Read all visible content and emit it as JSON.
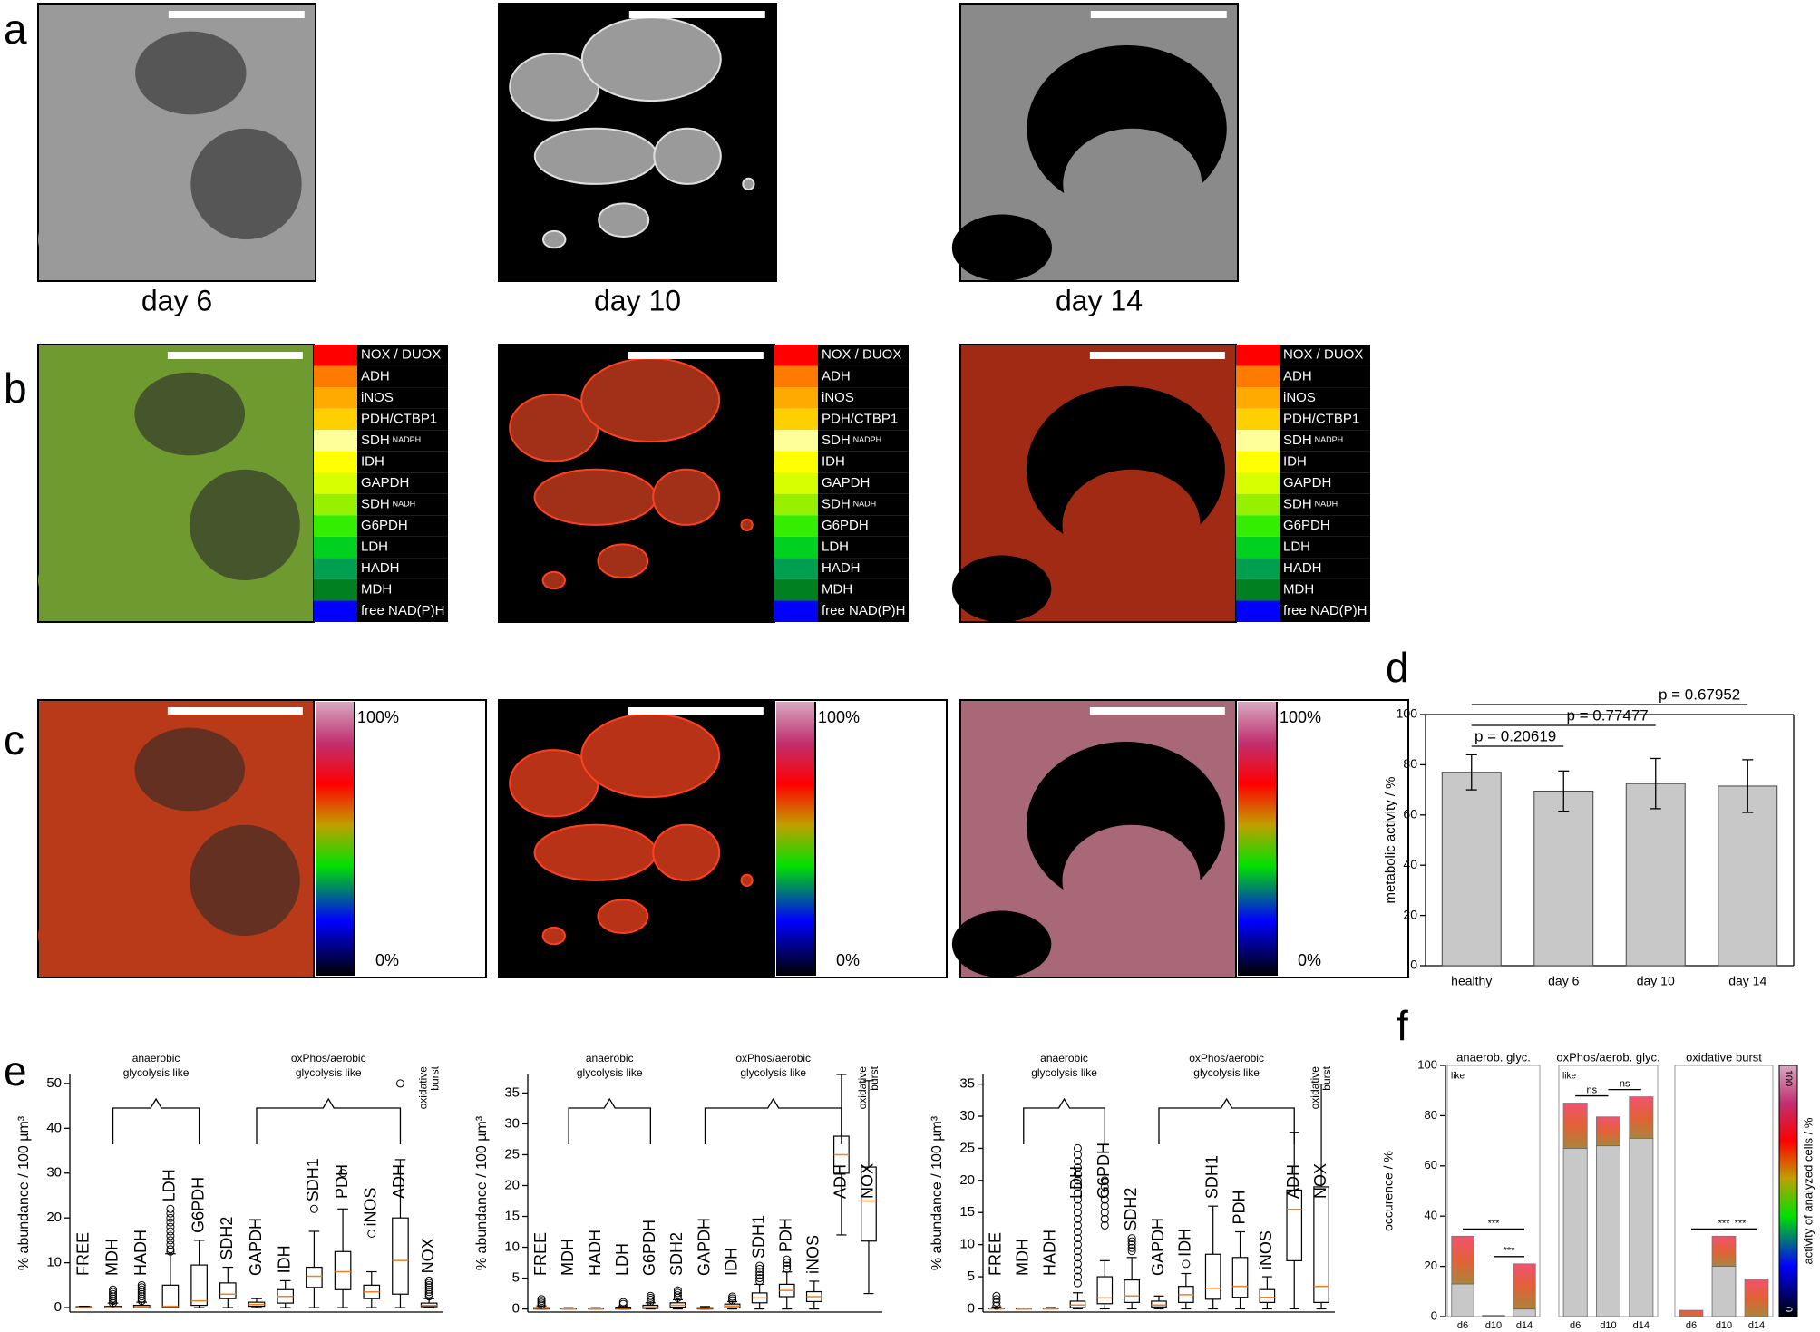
{
  "panel_labels": [
    "a",
    "b",
    "c",
    "d",
    "e",
    "f"
  ],
  "row_a": {
    "captions": [
      "day 6",
      "day 10",
      "day 14"
    ]
  },
  "row_b": {
    "legend": [
      {
        "label": "NOX / DUOX",
        "color": "#ff0000"
      },
      {
        "label": "ADH",
        "color": "#ff7a00"
      },
      {
        "label": "iNOS",
        "color": "#ffaa00"
      },
      {
        "label": "PDH/CTBP1",
        "color": "#ffd000"
      },
      {
        "label": "SDH",
        "sub": "NADPH",
        "color": "#ffff9a"
      },
      {
        "label": "IDH",
        "color": "#ffff00"
      },
      {
        "label": "GAPDH",
        "color": "#d8ff00"
      },
      {
        "label": "SDH",
        "sub": "NADH",
        "color": "#96f000"
      },
      {
        "label": "G6PDH",
        "color": "#33ee00"
      },
      {
        "label": "LDH",
        "color": "#00d020"
      },
      {
        "label": "HADH",
        "color": "#00a050"
      },
      {
        "label": "MDH",
        "color": "#008020"
      },
      {
        "label": "free NAD(P)H",
        "color": "#0000ff"
      }
    ]
  },
  "row_c": {
    "colorbar_labels": [
      "100%",
      "0%"
    ]
  },
  "chart_data": [
    {
      "type": "bar",
      "ylabel": "metabolic activity / %",
      "categories": [
        "healthy",
        "day 6",
        "day 10",
        "day 14"
      ],
      "values": [
        77,
        69.5,
        72.5,
        71.5
      ],
      "errors": [
        7,
        8,
        10,
        10.5
      ],
      "color": "#c8c8c8",
      "ylim": [
        0,
        100
      ],
      "yticks": [
        0,
        20,
        40,
        60,
        80,
        100
      ],
      "annotations": [
        {
          "text": "p = 0.20619",
          "between": [
            0,
            1
          ]
        },
        {
          "text": "p = 0.77477",
          "between": [
            0,
            2
          ]
        },
        {
          "text": "p = 0.67952",
          "between": [
            0,
            3
          ]
        }
      ]
    },
    {
      "type": "box",
      "ylabel": "% abundance / 100 µm³",
      "categories": [
        "FREE",
        "MDH",
        "HADH",
        "LDH",
        "G6PDH",
        "SDH2",
        "GAPDH",
        "IDH",
        "SDH1",
        "PDH",
        "iNOS",
        "ADH",
        "NOX"
      ],
      "boxes": [
        [
          0,
          0,
          0,
          0.2,
          0.3
        ],
        [
          0,
          0,
          0.1,
          0.3,
          1
        ],
        [
          0,
          0,
          0.2,
          0.5,
          1.2
        ],
        [
          0,
          0,
          0.3,
          5,
          12
        ],
        [
          0,
          0.5,
          1.5,
          9.5,
          15
        ],
        [
          0,
          2,
          3,
          5.5,
          9
        ],
        [
          0,
          0.3,
          0.7,
          1.2,
          2
        ],
        [
          0,
          1,
          2.5,
          4,
          6
        ],
        [
          0,
          4.5,
          7,
          9,
          17
        ],
        [
          0,
          4,
          8,
          12.5,
          22
        ],
        [
          0,
          2,
          3.5,
          5,
          8
        ],
        [
          0,
          3,
          10.5,
          20,
          33
        ],
        [
          0,
          0.2,
          0.5,
          1,
          2
        ]
      ],
      "outliers": [
        [],
        [
          1,
          1.5,
          2,
          2.5,
          3,
          3.5,
          4
        ],
        [
          1.5,
          2,
          2.5,
          3,
          3.5,
          4,
          4.5,
          5
        ],
        [
          12.5,
          13,
          14,
          15,
          16,
          17,
          18,
          19,
          20,
          21,
          22
        ],
        [],
        [],
        [],
        [],
        [
          22
        ],
        [
          30
        ],
        [
          16.5
        ],
        [
          50
        ],
        [
          2.5,
          3,
          3.5,
          4,
          4.5,
          5,
          5.5,
          6
        ]
      ],
      "group_labels": [
        [
          "anaerobic",
          "glycolysis like"
        ],
        [
          "oxPhos/aerobic",
          "glycolysis like"
        ],
        [
          "oxidative",
          "burst"
        ]
      ],
      "ylim": [
        -1,
        52
      ],
      "yticks": [
        0,
        10,
        20,
        30,
        40,
        50
      ]
    },
    {
      "type": "box",
      "ylabel": "% abundance / 100 µm³",
      "categories": [
        "FREE",
        "MDH",
        "HADH",
        "LDH",
        "G6PDH",
        "SDH2",
        "GAPDH",
        "IDH",
        "SDH1",
        "PDH",
        "iNOS",
        "ADH",
        "NOX"
      ],
      "boxes": [
        [
          0,
          0,
          0.1,
          0.2,
          0.5
        ],
        [
          0,
          0,
          0,
          0.1,
          0.2
        ],
        [
          0,
          0,
          0,
          0.1,
          0.2
        ],
        [
          0,
          0,
          0.1,
          0.3,
          0.5
        ],
        [
          0,
          0.1,
          0.3,
          0.6,
          1
        ],
        [
          0,
          0.3,
          0.6,
          1,
          1.5
        ],
        [
          0,
          0,
          0.1,
          0.2,
          0.4
        ],
        [
          0,
          0.2,
          0.5,
          0.8,
          1.2
        ],
        [
          0,
          1,
          1.8,
          2.6,
          4
        ],
        [
          0,
          2,
          3,
          4,
          6
        ],
        [
          0,
          1.2,
          2,
          2.8,
          4.5
        ],
        [
          12,
          22,
          25,
          28,
          38
        ],
        [
          2.5,
          11,
          17.5,
          23,
          37
        ]
      ],
      "outliers": [
        [
          0.7,
          1,
          1.3,
          1.6
        ],
        [],
        [],
        [
          0.8,
          1.1
        ],
        [
          1.2,
          1.5,
          1.8,
          2.1
        ],
        [
          1.8,
          2.2,
          2.6,
          3
        ],
        [],
        [
          1.4,
          1.7,
          2
        ],
        [
          4.5,
          5,
          5.5,
          6,
          6.5,
          7
        ],
        [
          6.5,
          7,
          7.5,
          8
        ],
        [],
        [],
        []
      ],
      "group_labels": [
        [
          "anaerobic",
          "glycolysis like"
        ],
        [
          "oxPhos/aerobic",
          "glycolysis like"
        ],
        [
          "oxidative",
          "burst"
        ]
      ],
      "ylim": [
        -0.5,
        38
      ],
      "yticks": [
        0,
        5,
        10,
        15,
        20,
        25,
        30,
        35
      ]
    },
    {
      "type": "box",
      "ylabel": "% abundance / 100 µm³",
      "categories": [
        "FREE",
        "MDH",
        "HADH",
        "LDH",
        "G6PDH",
        "SDH2",
        "GAPDH",
        "IDH",
        "SDH1",
        "PDH",
        "iNOS",
        "ADH",
        "NOX"
      ],
      "boxes": [
        [
          0,
          0,
          0,
          0.1,
          0.3
        ],
        [
          0,
          0,
          0,
          0.05,
          0.1
        ],
        [
          0,
          0,
          0,
          0.1,
          0.2
        ],
        [
          0,
          0.2,
          0.6,
          1.2,
          2.5
        ],
        [
          0,
          0.8,
          1.7,
          5,
          7.5
        ],
        [
          0,
          1,
          2,
          4.5,
          8
        ],
        [
          0,
          0.3,
          0.6,
          1.2,
          2
        ],
        [
          0,
          1,
          2.2,
          3.5,
          5.5
        ],
        [
          0,
          1.5,
          3.2,
          8.5,
          16
        ],
        [
          0,
          1.8,
          3.5,
          8,
          12
        ],
        [
          0,
          1,
          1.8,
          3,
          5
        ],
        [
          0,
          7.5,
          15.5,
          18.5,
          27.5
        ],
        [
          0,
          1,
          3.5,
          19,
          35
        ]
      ],
      "outliers": [
        [
          0.5,
          1,
          1.5,
          2
        ],
        [],
        [],
        [
          4,
          5,
          6,
          7,
          8,
          9,
          10,
          11,
          12,
          13,
          14,
          15,
          16,
          17,
          18,
          19,
          20,
          21,
          22,
          23,
          24,
          25
        ],
        [
          13,
          14,
          15,
          16,
          17,
          18,
          19,
          20
        ],
        [
          9,
          9.5,
          10,
          10.5,
          11
        ],
        [],
        [
          7
        ],
        [],
        [],
        [],
        [],
        []
      ],
      "group_labels": [
        [
          "anaerobic",
          "glycolysis like"
        ],
        [
          "oxPhos/aerobic",
          "glycolysis like"
        ],
        [
          "oxidative",
          "burst"
        ]
      ],
      "ylim": [
        -0.5,
        36.5
      ],
      "yticks": [
        0,
        5,
        10,
        15,
        20,
        25,
        30,
        35
      ]
    },
    {
      "type": "grouped_stack",
      "ylabel": "occurence / %",
      "ylim": [
        0,
        100
      ],
      "yticks": [
        0,
        20,
        40,
        60,
        80,
        100
      ],
      "groups": [
        {
          "title": "anaerob. glyc.",
          "note": "like",
          "categories": [
            "d6",
            "d10",
            "d14"
          ],
          "series": [
            {
              "color": "#c8c8c8",
              "values": [
                13,
                0,
                3
              ]
            },
            {
              "color": "#e05020",
              "values": [
                19,
                0.5,
                18
              ]
            }
          ],
          "significance": [
            {
              "text": "***",
              "between": [
                0,
                2
              ]
            },
            {
              "text": "***",
              "between": [
                1,
                2
              ]
            }
          ]
        },
        {
          "title": "oxPhos/aerob. glyc.",
          "note": "like",
          "categories": [
            "d6",
            "d10",
            "d14"
          ],
          "series": [
            {
              "color": "#c8c8c8",
              "values": [
                67,
                68,
                71
              ]
            },
            {
              "color": "#e05020",
              "values": [
                18,
                11.5,
                16.5
              ]
            }
          ],
          "significance": [
            {
              "text": "ns",
              "between": [
                0,
                1
              ]
            },
            {
              "text": "ns",
              "between": [
                1,
                2
              ]
            }
          ]
        },
        {
          "title": "oxidative burst",
          "categories": [
            "d6",
            "d10",
            "d14"
          ],
          "series": [
            {
              "color": "#c8c8c8",
              "values": [
                0,
                20,
                0
              ]
            },
            {
              "color": "#e05020",
              "values": [
                2.5,
                12,
                15
              ]
            }
          ],
          "significance": [
            {
              "text": "***",
              "between": [
                0,
                2
              ]
            },
            {
              "text": "***",
              "between": [
                1,
                2
              ]
            }
          ]
        }
      ],
      "colorbar": {
        "label": "activity of analyzed cells / %",
        "ticks": [
          0,
          100
        ]
      }
    }
  ]
}
